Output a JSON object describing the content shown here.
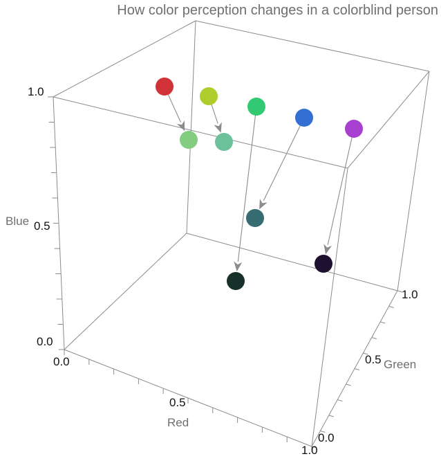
{
  "chart_data": {
    "type": "scatter3d",
    "title": "How color perception changes in a colorblind person",
    "axes": {
      "x": {
        "label": "Red",
        "range": [
          0,
          1
        ],
        "ticks": [
          "0.0",
          "0.5",
          "1.0"
        ]
      },
      "y": {
        "label": "Green",
        "range": [
          0,
          1
        ],
        "ticks": [
          "0.0",
          "0.5",
          "1.0"
        ]
      },
      "z": {
        "label": "Blue",
        "range": [
          0,
          1
        ],
        "ticks": [
          "0.0",
          "0.5",
          "1.0"
        ]
      }
    },
    "grid": false,
    "box": true,
    "arrows": [
      {
        "from": {
          "color": "#d03238"
        },
        "to": {
          "color": "#83cd80"
        }
      },
      {
        "from": {
          "color": "#afcd2d"
        },
        "to": {
          "color": "#6bc19a"
        }
      },
      {
        "from": {
          "color": "#31c971"
        },
        "to": {
          "color": "#16302a"
        }
      },
      {
        "from": {
          "color": "#3370d2"
        },
        "to": {
          "color": "#376c72"
        }
      },
      {
        "from": {
          "color": "#a73fd0"
        },
        "to": {
          "color": "#1e1030"
        }
      }
    ]
  }
}
